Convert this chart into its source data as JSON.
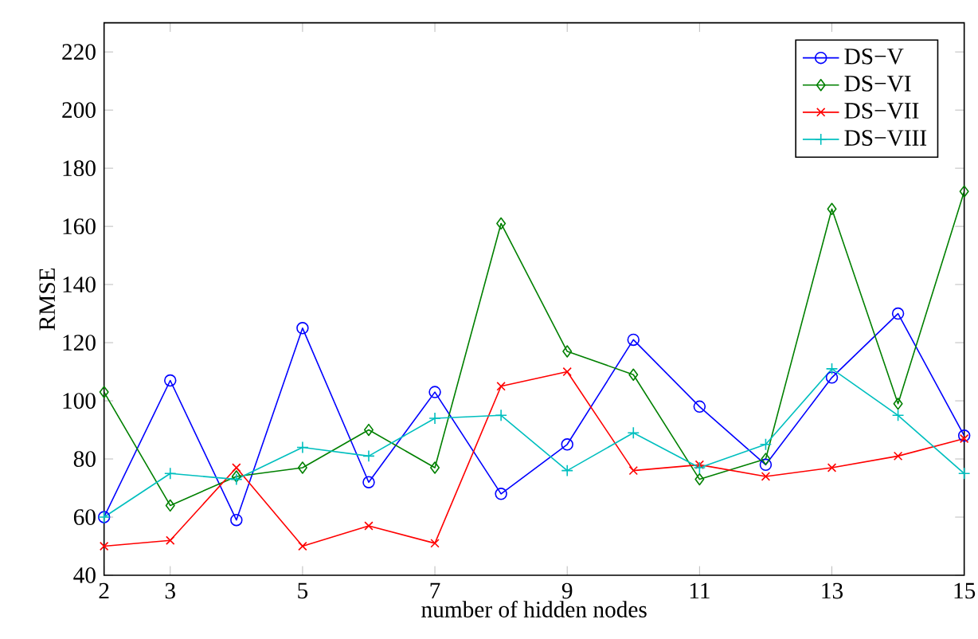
{
  "chart_data": {
    "type": "line",
    "xlabel": "number of hidden nodes",
    "ylabel": "RMSE",
    "x": [
      2,
      3,
      4,
      5,
      6,
      7,
      8,
      9,
      10,
      11,
      12,
      13,
      14,
      15
    ],
    "xlim": [
      2,
      15
    ],
    "xticks": [
      2,
      3,
      5,
      7,
      9,
      11,
      13,
      15
    ],
    "ylim": [
      40,
      230
    ],
    "yticks": [
      40,
      60,
      80,
      100,
      120,
      140,
      160,
      180,
      200,
      220
    ],
    "grid": false,
    "legend": "top right",
    "line_style": "solid",
    "series": [
      {
        "name": "DS−V",
        "color": "#0000ff",
        "marker": "circle",
        "values": [
          60,
          107,
          59,
          125,
          72,
          103,
          68,
          85,
          121,
          98,
          78,
          108,
          130,
          88
        ]
      },
      {
        "name": "DS−VI",
        "color": "#008000",
        "marker": "diamond",
        "values": [
          103,
          64,
          74,
          77,
          90,
          77,
          161,
          117,
          109,
          73,
          80,
          166,
          99,
          172
        ]
      },
      {
        "name": "DS−VII",
        "color": "#ff0000",
        "marker": "cross",
        "values": [
          50,
          52,
          77,
          50,
          57,
          51,
          105,
          110,
          76,
          78,
          74,
          77,
          81,
          87
        ]
      },
      {
        "name": "DS−VIII",
        "color": "#00bfbf",
        "marker": "plus",
        "values": [
          60,
          75,
          73,
          84,
          81,
          94,
          95,
          76,
          89,
          77,
          85,
          111,
          95,
          75
        ]
      }
    ]
  }
}
